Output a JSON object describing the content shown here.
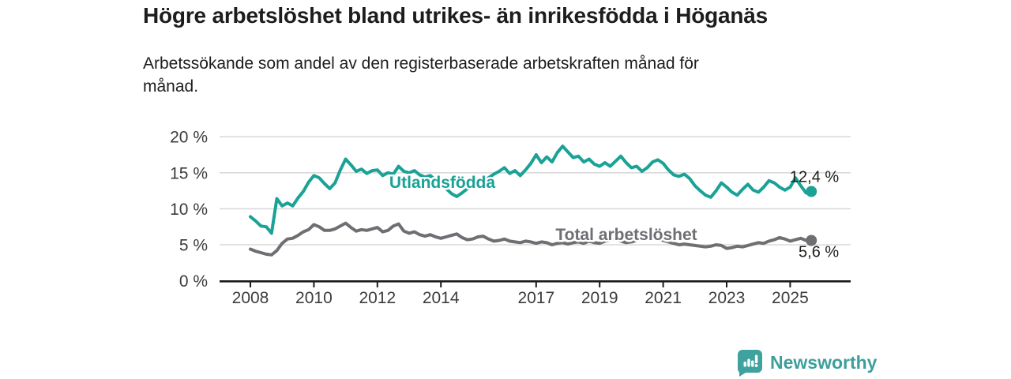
{
  "header": {
    "title": "Högre arbetslöshet bland utrikes- än inrikesfödda i Höganäs",
    "subtitle_line1": "Arbetssökande som andel av den registerbaserade arbetskraften månad för",
    "subtitle_line2": "månad."
  },
  "chart_data": {
    "type": "line",
    "title": "Högre arbetslöshet bland utrikes- än inrikesfödda i Höganäs",
    "subtitle": "Arbetssökande som andel av den registerbaserade arbetskraften månad för månad.",
    "xlabel": "",
    "ylabel": "",
    "grid": true,
    "legend_position": "inline-labels",
    "ylim": [
      0,
      20
    ],
    "y_ticks": [
      0,
      5,
      10,
      15,
      20
    ],
    "y_tick_suffix": " %",
    "x_ticks": [
      2008,
      2010,
      2012,
      2014,
      2017,
      2019,
      2021,
      2023,
      2025
    ],
    "x_start_year": 2008.0,
    "x_step_months": 2,
    "series": [
      {
        "name": "Utlandsfödda",
        "color": "#1AA296",
        "end_label": "12,4 %",
        "end_value": 12.4,
        "values": [
          8.9,
          8.3,
          7.6,
          7.5,
          6.6,
          11.4,
          10.4,
          10.8,
          10.4,
          11.5,
          12.4,
          13.7,
          14.6,
          14.3,
          13.5,
          12.8,
          13.6,
          15.4,
          16.9,
          16.1,
          15.2,
          15.5,
          14.9,
          15.3,
          15.4,
          14.6,
          15.0,
          14.8,
          15.9,
          15.2,
          15.0,
          15.3,
          14.7,
          14.4,
          14.6,
          14.0,
          13.6,
          12.8,
          12.1,
          11.7,
          12.2,
          12.8,
          12.9,
          13.5,
          13.9,
          14.3,
          14.8,
          15.2,
          15.7,
          14.9,
          15.3,
          14.6,
          15.4,
          16.3,
          17.5,
          16.4,
          17.2,
          16.5,
          17.8,
          18.7,
          17.9,
          17.1,
          17.3,
          16.5,
          16.9,
          16.2,
          15.9,
          16.4,
          15.9,
          16.6,
          17.3,
          16.4,
          15.7,
          15.9,
          15.2,
          15.7,
          16.5,
          16.8,
          16.3,
          15.4,
          14.7,
          14.5,
          14.8,
          14.2,
          13.2,
          12.5,
          11.9,
          11.6,
          12.5,
          13.6,
          13.0,
          12.3,
          11.9,
          12.7,
          13.4,
          12.6,
          12.3,
          13.0,
          13.9,
          13.6,
          13.0,
          12.6,
          13.0,
          14.3,
          13.2,
          12.2,
          12.4
        ]
      },
      {
        "name": "Total arbetslöshet",
        "color": "#6E6E73",
        "end_label": "5,6 %",
        "end_value": 5.6,
        "values": [
          4.4,
          4.1,
          3.9,
          3.7,
          3.6,
          4.2,
          5.2,
          5.8,
          5.9,
          6.3,
          6.8,
          7.1,
          7.8,
          7.5,
          7.0,
          7.0,
          7.2,
          7.6,
          8.0,
          7.4,
          6.9,
          7.1,
          7.0,
          7.2,
          7.4,
          6.8,
          7.0,
          7.6,
          7.9,
          6.9,
          6.6,
          6.8,
          6.4,
          6.2,
          6.4,
          6.1,
          5.9,
          6.1,
          6.3,
          6.5,
          6.0,
          5.7,
          5.8,
          6.1,
          6.2,
          5.8,
          5.5,
          5.6,
          5.8,
          5.5,
          5.4,
          5.3,
          5.5,
          5.4,
          5.2,
          5.4,
          5.3,
          5.0,
          5.2,
          5.3,
          5.1,
          5.3,
          5.4,
          5.2,
          5.5,
          5.3,
          5.2,
          5.5,
          5.6,
          5.8,
          5.5,
          5.3,
          5.4,
          5.6,
          6.0,
          6.2,
          6.0,
          5.8,
          5.6,
          5.4,
          5.2,
          5.0,
          5.1,
          5.0,
          4.9,
          4.8,
          4.7,
          4.8,
          5.0,
          4.9,
          4.5,
          4.6,
          4.8,
          4.7,
          4.9,
          5.1,
          5.3,
          5.2,
          5.5,
          5.7,
          6.0,
          5.8,
          5.5,
          5.7,
          5.9,
          5.6,
          5.6
        ]
      }
    ],
    "colors": {
      "gridline": "#DADADA",
      "axis": "#1A1A1A",
      "axis_text": "#3C3C3C"
    }
  },
  "footer": {
    "brand_label": "Newsworthy",
    "brand_color": "#3C9F9C"
  }
}
